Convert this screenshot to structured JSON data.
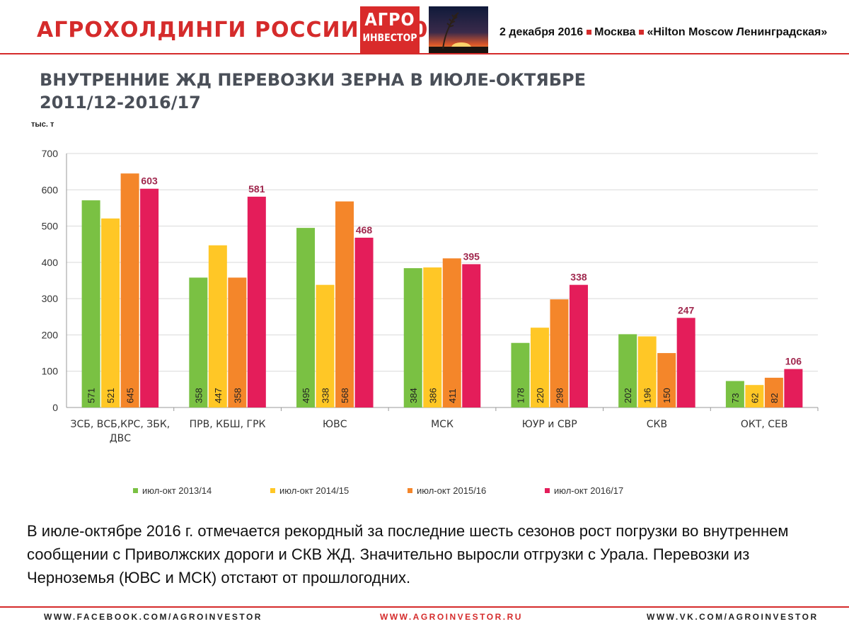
{
  "header": {
    "conference_title": "АГРОХОЛДИНГИ РОССИИ — 2016",
    "logo_line1": "АГРО",
    "logo_line2": "ИНВЕСТОР",
    "date": "2 декабря 2016",
    "city": "Москва",
    "venue": "«Hilton Moscow Ленинградская»",
    "accent_color": "#d52b2b"
  },
  "slide": {
    "title_line1": "ВНУТРЕННИЕ ЖД ПЕРЕВОЗКИ ЗЕРНА В ИЮЛЕ-ОКТЯБРЕ",
    "title_line2": "2011/12-2016/17",
    "caption": "В июле-октябре 2016 г. отмечается рекордный за последние шесть сезонов рост погрузки во внутреннем сообщении  с Приволжских дороги и СКВ ЖД. Значительно выросли отгрузки с Урала. Перевозки из Черноземья (ЮВС и МСК) отстают от прошлогодних."
  },
  "chart_data": {
    "type": "bar",
    "unit_label": "тыс. т",
    "categories": [
      [
        "ЗСБ, ВСБ,КРС, ЗБК,",
        "ДВС"
      ],
      [
        "ПРВ, КБШ, ГРК"
      ],
      [
        "ЮВС"
      ],
      [
        "МСК"
      ],
      [
        "ЮУР и СВР"
      ],
      [
        "СКВ"
      ],
      [
        "ОКТ, СЕВ"
      ]
    ],
    "series": [
      {
        "name": "июл-окт 2013/14",
        "color": "#7ac143",
        "values": [
          571,
          358,
          495,
          384,
          178,
          202,
          73
        ]
      },
      {
        "name": "июл-окт 2014/15",
        "color": "#ffc726",
        "values": [
          521,
          447,
          338,
          386,
          220,
          196,
          62
        ]
      },
      {
        "name": "июл-окт 2015/16",
        "color": "#f4862a",
        "values": [
          645,
          358,
          568,
          411,
          298,
          150,
          82
        ]
      },
      {
        "name": "июл-окт 2016/17",
        "color": "#e41d5a",
        "values": [
          603,
          581,
          468,
          395,
          338,
          247,
          106
        ]
      }
    ],
    "ylim": [
      0,
      700
    ],
    "yticks": [
      0,
      100,
      200,
      300,
      400,
      500,
      600,
      700
    ],
    "grid": true,
    "legend_position": "bottom",
    "top_label_color": "#a0284e"
  },
  "footer": {
    "left": "WWW.FACEBOOK.COM/AGROINVESTOR",
    "center": "WWW.AGROINVESTOR.RU",
    "right": "WWW.VK.COM/AGROINVESTOR",
    "center_color": "#d52b2b",
    "side_color": "#222222"
  }
}
